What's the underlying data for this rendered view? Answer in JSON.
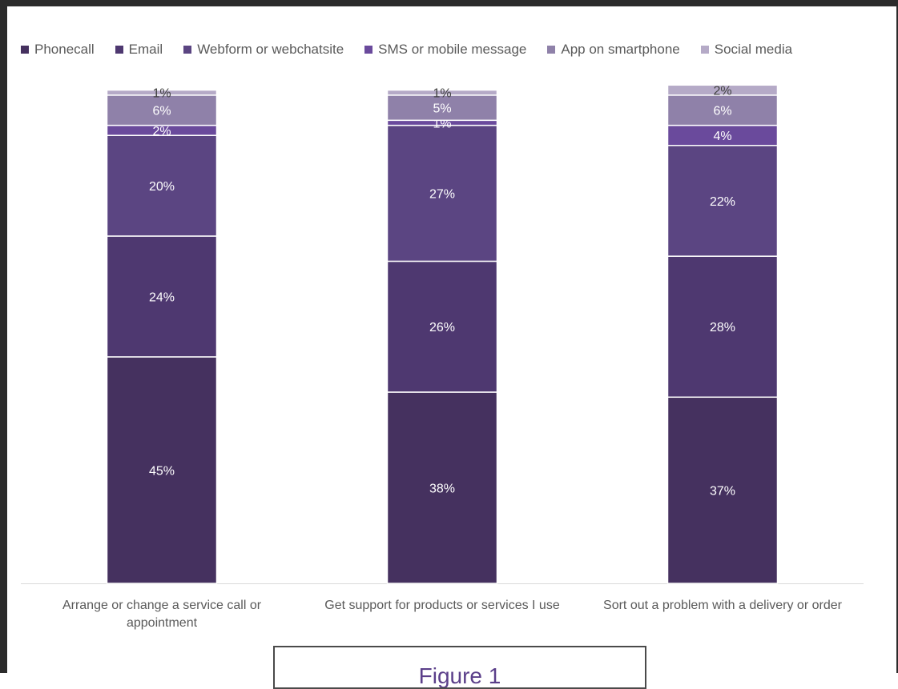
{
  "chart_data": {
    "type": "bar",
    "stacked": true,
    "categories": [
      "Arrange or change a service call or appointment",
      "Get support for products or services I use",
      "Sort out a problem with a delivery or order"
    ],
    "series": [
      {
        "name": "Phonecall",
        "values": [
          45,
          38,
          37
        ],
        "color": "#45315f",
        "data_labels": [
          "45%",
          "38%",
          "37%"
        ]
      },
      {
        "name": "Email",
        "values": [
          24,
          26,
          28
        ],
        "color": "#4e3870",
        "data_labels": [
          "24%",
          "26%",
          "28%"
        ]
      },
      {
        "name": "Webform or webchatsite",
        "values": [
          20,
          27,
          22
        ],
        "color": "#5b4582",
        "data_labels": [
          "20%",
          "27%",
          "22%"
        ]
      },
      {
        "name": "SMS or mobile message",
        "values": [
          2,
          1,
          4
        ],
        "color": "#6a4a9c",
        "data_labels": [
          "2%",
          "1%",
          "4%"
        ]
      },
      {
        "name": "App on smartphone",
        "values": [
          6,
          5,
          6
        ],
        "color": "#8f81a9",
        "data_labels": [
          "6%",
          "5%",
          "6%"
        ]
      },
      {
        "name": "Social media",
        "values": [
          1,
          1,
          2
        ],
        "color": "#b5aac7",
        "data_labels": [
          "1%",
          "1%",
          "2%"
        ]
      }
    ],
    "legend_position": "top",
    "grid": false,
    "ylim": [
      0,
      100
    ]
  },
  "figure_caption": "Figure 1"
}
